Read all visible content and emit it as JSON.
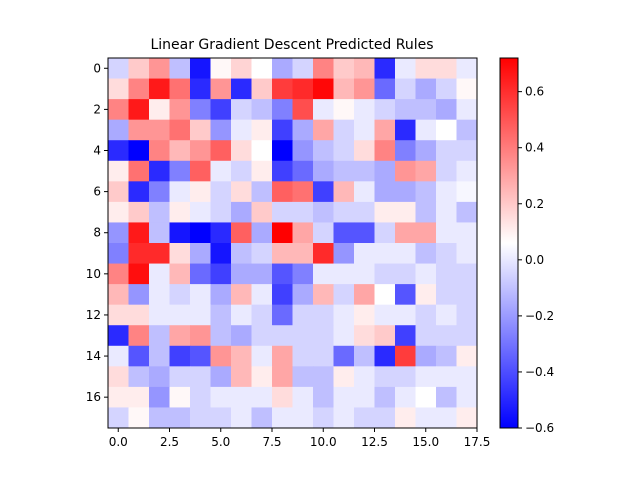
{
  "chart_data": {
    "type": "heatmap",
    "title": "Linear Gradient Descent Predicted Rules",
    "xlabel": "",
    "ylabel": "",
    "rows": 18,
    "cols": 18,
    "x_range": [
      -0.5,
      17.5
    ],
    "y_range": [
      17.5,
      -0.5
    ],
    "x_ticks": [
      0.0,
      2.5,
      5.0,
      7.5,
      10.0,
      12.5,
      15.0,
      17.5
    ],
    "x_tick_labels": [
      "0.0",
      "2.5",
      "5.0",
      "7.5",
      "10.0",
      "12.5",
      "15.0",
      "17.5"
    ],
    "y_ticks": [
      0,
      2,
      4,
      6,
      8,
      10,
      12,
      14,
      16
    ],
    "y_tick_labels": [
      "0",
      "2",
      "4",
      "6",
      "8",
      "10",
      "12",
      "14",
      "16"
    ],
    "colormap": "bwr",
    "vmin": -0.6,
    "vmax": 0.72,
    "colorbar_ticks": [
      0.6,
      0.4,
      0.2,
      0.0,
      -0.2,
      -0.4,
      -0.6
    ],
    "colorbar_tick_labels": [
      "0.6",
      "0.4",
      "0.2",
      "0.0",
      "−0.2",
      "−0.4",
      "−0.6"
    ],
    "grid": false,
    "values": [
      [
        -0.1,
        0.15,
        0.3,
        -0.15,
        -0.55,
        0.02,
        0.12,
        0.0,
        -0.2,
        -0.1,
        0.35,
        0.15,
        0.2,
        -0.5,
        -0.05,
        0.1,
        0.1,
        -0.05
      ],
      [
        0.1,
        0.35,
        0.65,
        0.4,
        -0.5,
        0.3,
        -0.5,
        0.15,
        0.55,
        0.6,
        0.7,
        0.2,
        0.3,
        -0.35,
        -0.1,
        -0.2,
        -0.1,
        0.02
      ],
      [
        0.35,
        0.65,
        0.05,
        0.3,
        -0.3,
        -0.45,
        -0.1,
        -0.15,
        -0.3,
        0.5,
        -0.05,
        0.02,
        -0.05,
        -0.1,
        -0.15,
        -0.15,
        -0.2,
        -0.05
      ],
      [
        -0.2,
        0.3,
        0.3,
        0.4,
        0.15,
        -0.25,
        -0.05,
        0.05,
        -0.45,
        -0.2,
        0.25,
        -0.1,
        -0.05,
        0.25,
        -0.5,
        -0.05,
        0.0,
        -0.15
      ],
      [
        -0.5,
        -0.6,
        0.35,
        0.2,
        0.3,
        0.45,
        0.1,
        0.0,
        -0.6,
        -0.25,
        -0.15,
        -0.1,
        0.1,
        0.35,
        -0.3,
        -0.2,
        -0.1,
        -0.1
      ],
      [
        0.05,
        0.4,
        -0.5,
        -0.3,
        0.45,
        -0.05,
        -0.1,
        0.05,
        -0.45,
        -0.35,
        -0.2,
        -0.15,
        -0.15,
        -0.2,
        0.3,
        0.25,
        -0.1,
        -0.05
      ],
      [
        0.15,
        -0.5,
        -0.3,
        -0.05,
        0.05,
        -0.1,
        0.1,
        -0.15,
        0.45,
        0.4,
        -0.45,
        0.2,
        -0.05,
        -0.2,
        -0.2,
        -0.15,
        -0.05,
        -0.02
      ],
      [
        0.05,
        0.15,
        -0.15,
        0.05,
        -0.05,
        -0.1,
        -0.2,
        0.15,
        -0.1,
        -0.1,
        -0.15,
        -0.1,
        -0.1,
        0.05,
        0.05,
        -0.15,
        -0.05,
        -0.15
      ],
      [
        -0.25,
        0.65,
        -0.15,
        -0.55,
        -0.6,
        -0.5,
        0.45,
        -0.2,
        0.72,
        0.25,
        -0.1,
        -0.4,
        -0.4,
        -0.1,
        0.25,
        0.25,
        -0.05,
        -0.05
      ],
      [
        -0.3,
        0.6,
        0.6,
        0.1,
        -0.2,
        -0.55,
        -0.15,
        -0.1,
        0.2,
        0.2,
        0.6,
        -0.25,
        -0.05,
        -0.05,
        -0.05,
        -0.15,
        -0.1,
        -0.05
      ],
      [
        0.35,
        0.68,
        -0.05,
        0.2,
        -0.35,
        -0.45,
        -0.2,
        -0.2,
        -0.4,
        -0.3,
        -0.05,
        -0.05,
        -0.05,
        -0.1,
        -0.1,
        -0.05,
        -0.1,
        -0.1
      ],
      [
        0.2,
        -0.25,
        -0.05,
        -0.1,
        -0.05,
        -0.2,
        0.2,
        -0.05,
        -0.45,
        -0.2,
        0.2,
        -0.1,
        0.25,
        0.0,
        -0.4,
        0.05,
        -0.1,
        -0.1
      ],
      [
        0.1,
        0.1,
        -0.05,
        -0.05,
        -0.05,
        -0.15,
        -0.05,
        -0.1,
        -0.35,
        -0.1,
        -0.1,
        -0.05,
        0.05,
        -0.05,
        -0.05,
        -0.1,
        -0.05,
        -0.1
      ],
      [
        -0.5,
        0.35,
        -0.15,
        0.25,
        0.3,
        -0.15,
        -0.2,
        -0.1,
        -0.1,
        -0.1,
        -0.1,
        -0.05,
        0.1,
        0.15,
        -0.45,
        -0.1,
        -0.1,
        -0.1
      ],
      [
        -0.05,
        -0.4,
        -0.15,
        -0.45,
        -0.4,
        0.3,
        0.2,
        -0.05,
        0.25,
        -0.1,
        -0.1,
        -0.35,
        -0.15,
        -0.5,
        0.55,
        -0.2,
        -0.15,
        0.05
      ],
      [
        0.1,
        -0.15,
        -0.2,
        -0.1,
        -0.1,
        -0.2,
        0.2,
        0.05,
        0.25,
        -0.15,
        -0.15,
        0.05,
        -0.05,
        -0.1,
        -0.1,
        -0.05,
        -0.05,
        -0.05
      ],
      [
        0.05,
        0.05,
        -0.25,
        0.02,
        -0.1,
        -0.05,
        -0.05,
        -0.05,
        0.1,
        -0.05,
        -0.15,
        -0.05,
        -0.05,
        -0.15,
        -0.05,
        0.0,
        -0.15,
        -0.05
      ],
      [
        -0.1,
        0.02,
        -0.15,
        -0.15,
        -0.1,
        -0.1,
        -0.05,
        -0.15,
        -0.05,
        -0.05,
        -0.1,
        -0.05,
        -0.1,
        -0.1,
        0.05,
        -0.05,
        -0.05,
        0.05
      ]
    ]
  }
}
